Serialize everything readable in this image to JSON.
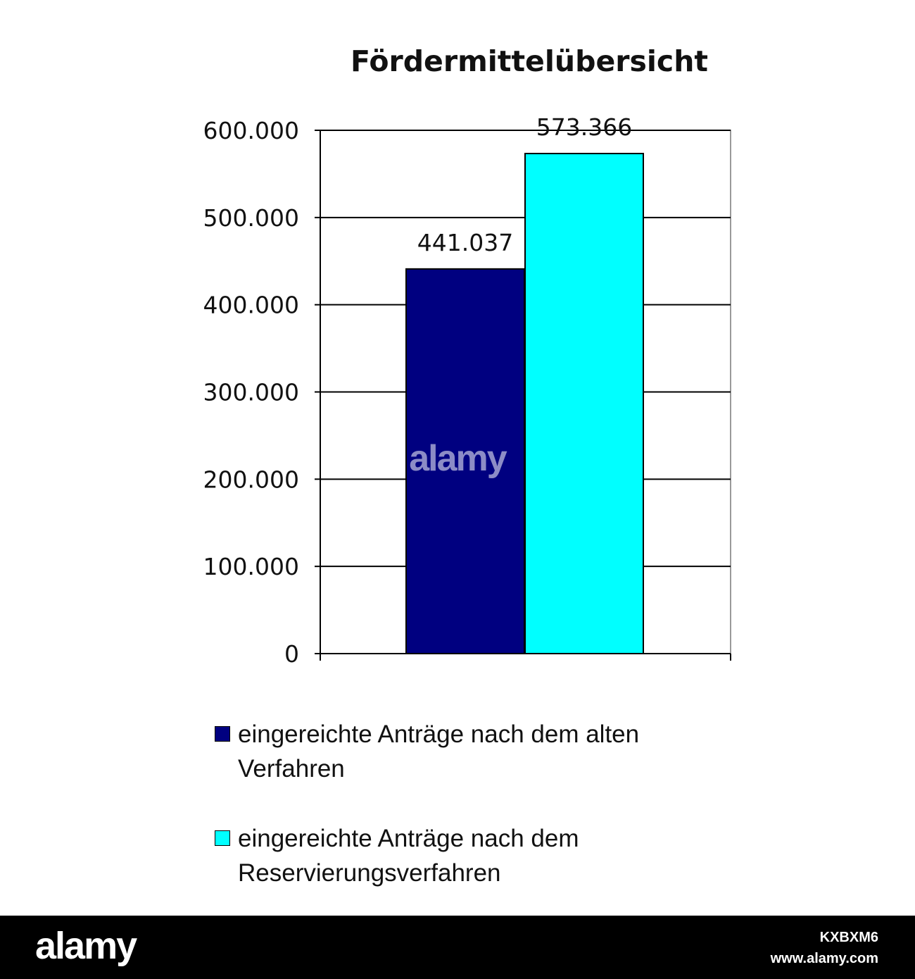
{
  "chart_data": {
    "type": "bar",
    "title": "Fördermittelübersicht",
    "xlabel": "",
    "ylabel": "",
    "ylim": [
      0,
      600000
    ],
    "yticks": [
      0,
      100000,
      200000,
      300000,
      400000,
      500000,
      600000
    ],
    "ytick_labels": [
      "0",
      "100.000",
      "200.000",
      "300.000",
      "400.000",
      "500.000",
      "600.000"
    ],
    "grid": true,
    "legend_position": "bottom",
    "series": [
      {
        "name": "eingereichte Anträge nach dem alten Verfahren",
        "value": 441037,
        "label": "441.037",
        "color": "#000080"
      },
      {
        "name": "eingereichte Anträge nach dem Reservierungsverfahren",
        "value": 573366,
        "label": "573.366",
        "color": "#00ffff"
      }
    ]
  },
  "watermark": {
    "text": "alamy",
    "image_id": "KXBXM6",
    "url": "www.alamy.com"
  }
}
